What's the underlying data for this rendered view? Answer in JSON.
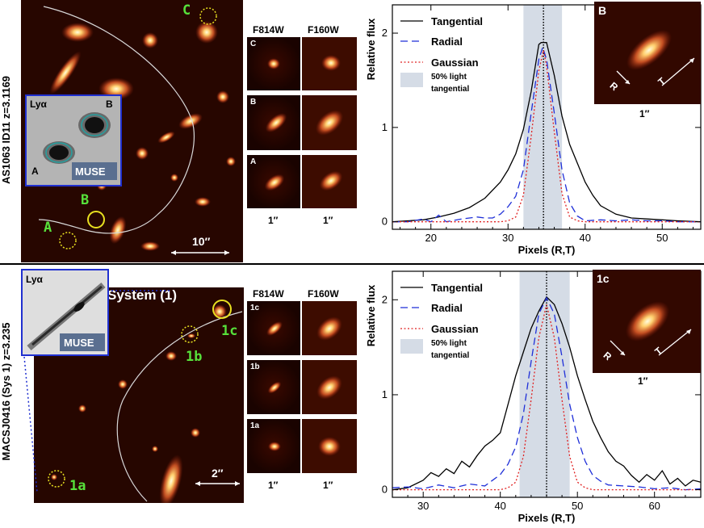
{
  "top": {
    "side_label": "AS1063 ID11 z=3.1169",
    "labels": {
      "A": "A",
      "B": "B",
      "C": "C",
      "scale": "10″"
    },
    "inset": {
      "lya": "Lyα",
      "a": "A",
      "b": "B",
      "muse": "MUSE"
    },
    "stamp_headers": [
      "F814W",
      "F160W"
    ],
    "stamp_rows": [
      "C",
      "B",
      "A"
    ],
    "stamp_scales": [
      "1″",
      "1″"
    ],
    "profile_inset": {
      "label": "B",
      "r": "R",
      "t": "T",
      "scale": "1″"
    }
  },
  "bottom": {
    "side_label": "MACSJ0416 (Sys 1) z=3.235",
    "title": "System (1)",
    "labels": {
      "1a": "1a",
      "1b": "1b",
      "1c": "1c",
      "scale": "2″"
    },
    "inset": {
      "lya": "Lyα",
      "muse": "MUSE"
    },
    "stamp_headers": [
      "F814W",
      "F160W"
    ],
    "stamp_rows": [
      "1c",
      "1b",
      "1a"
    ],
    "stamp_scales": [
      "1″",
      "1″"
    ],
    "profile_inset": {
      "label": "1c",
      "r": "R",
      "t": "T",
      "scale": "1″"
    }
  },
  "chart_data": [
    {
      "type": "line",
      "title": "",
      "xlabel": "Pixels (R,T)",
      "ylabel": "Relative flux",
      "xlim": [
        15,
        55
      ],
      "ylim": [
        -0.08,
        2.3
      ],
      "xticks": [
        20,
        30,
        40,
        50
      ],
      "yticks": [
        0,
        1,
        2
      ],
      "shaded_band": {
        "x0": 32,
        "x1": 37,
        "label": "50% light tangential"
      },
      "center_line": 34.6,
      "legend": [
        "Tangential",
        "Radial",
        "Gaussian",
        "50% light tangential"
      ],
      "series": [
        {
          "name": "Tangential",
          "color": "#000000",
          "dash": "none",
          "x": [
            15,
            17,
            19,
            21,
            23,
            25,
            27,
            29,
            30,
            31,
            32,
            33,
            34,
            34.3,
            35,
            36,
            37,
            38,
            39,
            40,
            41,
            42,
            44,
            46,
            48,
            50,
            52,
            55
          ],
          "y": [
            0.0,
            0.01,
            0.02,
            0.05,
            0.09,
            0.15,
            0.25,
            0.42,
            0.55,
            0.72,
            0.98,
            1.38,
            1.88,
            1.9,
            1.9,
            1.55,
            1.12,
            0.82,
            0.62,
            0.42,
            0.28,
            0.17,
            0.08,
            0.04,
            0.03,
            0.02,
            0.01,
            0.0
          ]
        },
        {
          "name": "Radial",
          "color": "#1f2fd8",
          "dash": "9,5",
          "x": [
            15,
            17,
            19,
            20,
            21,
            22,
            24,
            26,
            27,
            28,
            29,
            30,
            31,
            32,
            33,
            34,
            34.5,
            35,
            36,
            37,
            38,
            39,
            40,
            42,
            44,
            46,
            48,
            50,
            52,
            55
          ],
          "y": [
            0.0,
            0.0,
            0.03,
            0.0,
            0.07,
            0.0,
            0.03,
            0.05,
            0.04,
            0.04,
            0.08,
            0.16,
            0.27,
            0.55,
            1.15,
            1.72,
            1.85,
            1.72,
            1.15,
            0.55,
            0.2,
            0.06,
            0.01,
            0.02,
            0.01,
            0.02,
            0.01,
            0.01,
            0.0,
            0.0
          ]
        },
        {
          "name": "Gaussian",
          "color": "#e02020",
          "dash": "2,2.5",
          "x": [
            15,
            25,
            29,
            30,
            31,
            32,
            33,
            34,
            34.6,
            35,
            36,
            37,
            38,
            39,
            40,
            45,
            55
          ],
          "y": [
            0.0,
            0.0,
            0.0,
            0.01,
            0.05,
            0.28,
            0.9,
            1.6,
            1.82,
            1.65,
            0.95,
            0.3,
            0.05,
            0.01,
            0.0,
            0.0,
            0.0
          ]
        }
      ]
    },
    {
      "type": "line",
      "title": "",
      "xlabel": "Pixels (R,T)",
      "ylabel": "Relative flux",
      "xlim": [
        26,
        66
      ],
      "ylim": [
        -0.08,
        2.3
      ],
      "xticks": [
        30,
        40,
        50,
        60
      ],
      "yticks": [
        0,
        1,
        2
      ],
      "shaded_band": {
        "x0": 42.5,
        "x1": 49,
        "label": "50% light tangential"
      },
      "center_line": 46,
      "legend": [
        "Tangential",
        "Radial",
        "Gaussian",
        "50% light tangential"
      ],
      "series": [
        {
          "name": "Tangential",
          "color": "#000000",
          "dash": "none",
          "x": [
            26,
            28,
            30,
            31,
            32,
            33,
            34,
            35,
            36,
            37,
            38,
            39,
            40,
            41,
            42,
            43,
            44,
            45,
            46,
            47,
            48,
            49,
            50,
            51,
            52,
            53,
            54,
            55,
            56,
            57,
            58,
            59,
            60,
            61,
            62,
            63,
            64,
            65,
            66
          ],
          "y": [
            0.0,
            0.02,
            0.1,
            0.18,
            0.14,
            0.22,
            0.17,
            0.3,
            0.24,
            0.36,
            0.46,
            0.52,
            0.6,
            0.9,
            1.2,
            1.45,
            1.7,
            1.88,
            2.03,
            1.95,
            1.75,
            1.5,
            1.2,
            0.95,
            0.72,
            0.55,
            0.4,
            0.3,
            0.25,
            0.15,
            0.08,
            0.16,
            0.1,
            0.2,
            0.06,
            0.12,
            0.04,
            0.1,
            0.08
          ]
        },
        {
          "name": "Radial",
          "color": "#1f2fd8",
          "dash": "9,5",
          "x": [
            26,
            28,
            30,
            32,
            34,
            36,
            38,
            39,
            40,
            41,
            42,
            43,
            44,
            45,
            46,
            47,
            48,
            49,
            50,
            51,
            52,
            53,
            54,
            56,
            58,
            60,
            62,
            64,
            66
          ],
          "y": [
            0.02,
            0.03,
            0.01,
            0.05,
            0.02,
            0.06,
            0.04,
            0.1,
            0.16,
            0.27,
            0.45,
            0.8,
            1.35,
            1.85,
            2.02,
            1.85,
            1.4,
            0.9,
            0.55,
            0.3,
            0.15,
            0.09,
            0.05,
            0.04,
            0.03,
            0.01,
            0.02,
            0.0,
            0.01
          ]
        },
        {
          "name": "Gaussian",
          "color": "#e02020",
          "dash": "2,2.5",
          "x": [
            26,
            38,
            40,
            41,
            42,
            43,
            44,
            45,
            46,
            47,
            48,
            49,
            50,
            51,
            52,
            54,
            66
          ],
          "y": [
            0.0,
            0.0,
            0.0,
            0.02,
            0.08,
            0.35,
            0.95,
            1.6,
            1.95,
            1.6,
            0.95,
            0.35,
            0.08,
            0.02,
            0.0,
            0.0,
            0.0
          ]
        }
      ]
    }
  ]
}
